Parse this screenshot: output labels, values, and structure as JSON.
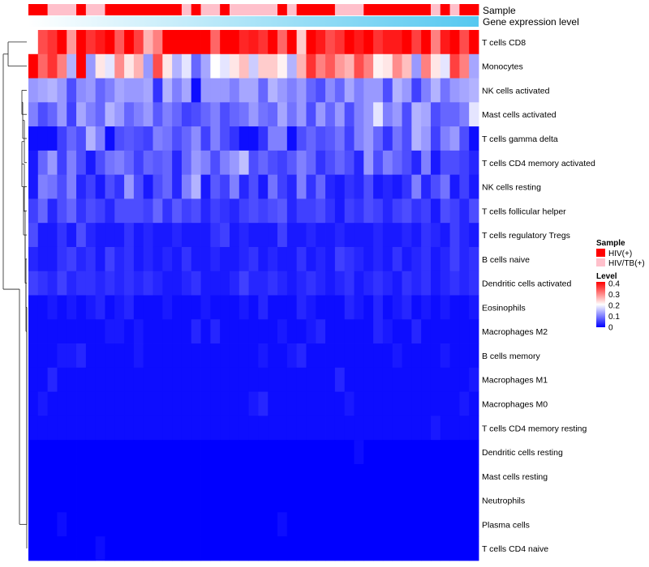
{
  "chart_data": {
    "type": "heatmap",
    "title": "",
    "annotations": {
      "sample_label": "Sample",
      "expression_label": "Gene expression level"
    },
    "rows": [
      "T cells CD8",
      "Monocytes",
      "NK cells activated",
      "Mast cells activated",
      "T cells gamma delta",
      "T cells CD4 memory activated",
      "NK cells resting",
      "T cells follicular helper",
      "T cells regulatory  Tregs",
      "B cells naive",
      "Dendritic cells activated",
      "Eosinophils",
      "Macrophages M2",
      "B cells memory",
      "Macrophages M1",
      "Macrophages M0",
      "T cells CD4 memory resting",
      "Dendritic cells resting",
      "Mast cells resting",
      "Neutrophils",
      "Plasma cells",
      "T cells CD4 naive"
    ],
    "n_columns": 47,
    "sample_groups": [
      "HIV(+)",
      "HIV(+)",
      "HIV/TB(+)",
      "HIV/TB(+)",
      "HIV/TB(+)",
      "HIV(+)",
      "HIV/TB(+)",
      "HIV/TB(+)",
      "HIV(+)",
      "HIV(+)",
      "HIV(+)",
      "HIV(+)",
      "HIV(+)",
      "HIV(+)",
      "HIV(+)",
      "HIV(+)",
      "HIV/TB(+)",
      "HIV(+)",
      "HIV/TB(+)",
      "HIV/TB(+)",
      "HIV(+)",
      "HIV/TB(+)",
      "HIV/TB(+)",
      "HIV/TB(+)",
      "HIV/TB(+)",
      "HIV/TB(+)",
      "HIV(+)",
      "HIV/TB(+)",
      "HIV(+)",
      "HIV(+)",
      "HIV(+)",
      "HIV(+)",
      "HIV/TB(+)",
      "HIV/TB(+)",
      "HIV/TB(+)",
      "HIV(+)",
      "HIV(+)",
      "HIV(+)",
      "HIV(+)",
      "HIV(+)",
      "HIV(+)",
      "HIV(+)",
      "HIV/TB(+)",
      "HIV(+)",
      "HIV/TB(+)",
      "HIV(+)",
      "HIV(+)"
    ],
    "values": [
      [
        0.2,
        0.34,
        0.36,
        0.4,
        0.28,
        0.42,
        0.36,
        0.38,
        0.42,
        0.33,
        0.42,
        0.35,
        0.26,
        0.3,
        0.42,
        0.44,
        0.44,
        0.4,
        0.44,
        0.32,
        0.42,
        0.4,
        0.37,
        0.38,
        0.36,
        0.41,
        0.32,
        0.4,
        0.24,
        0.42,
        0.38,
        0.34,
        0.36,
        0.42,
        0.38,
        0.4,
        0.36,
        0.38,
        0.38,
        0.42,
        0.35,
        0.42,
        0.3,
        0.38,
        0.42,
        0.34,
        0.42
      ],
      [
        0.4,
        0.32,
        0.36,
        0.3,
        0.14,
        0.42,
        0.12,
        0.22,
        0.18,
        0.29,
        0.22,
        0.26,
        0.12,
        0.34,
        0.22,
        0.14,
        0.18,
        0.08,
        0.13,
        0.2,
        0.18,
        0.22,
        0.25,
        0.16,
        0.24,
        0.24,
        0.21,
        0.14,
        0.26,
        0.36,
        0.3,
        0.33,
        0.28,
        0.26,
        0.34,
        0.3,
        0.21,
        0.22,
        0.29,
        0.25,
        0.12,
        0.3,
        0.22,
        0.18,
        0.35,
        0.3,
        0.13
      ],
      [
        0.12,
        0.13,
        0.14,
        0.12,
        0.06,
        0.11,
        0.12,
        0.08,
        0.1,
        0.13,
        0.12,
        0.12,
        0.13,
        0.04,
        0.14,
        0.1,
        0.13,
        0.01,
        0.12,
        0.12,
        0.12,
        0.1,
        0.13,
        0.13,
        0.08,
        0.14,
        0.12,
        0.1,
        0.12,
        0.08,
        0.06,
        0.11,
        0.08,
        0.13,
        0.1,
        0.12,
        0.12,
        0.06,
        0.14,
        0.12,
        0.05,
        0.1,
        0.14,
        0.09,
        0.12,
        0.13,
        0.14
      ],
      [
        0.1,
        0.06,
        0.08,
        0.12,
        0.05,
        0.13,
        0.1,
        0.08,
        0.14,
        0.12,
        0.08,
        0.1,
        0.12,
        0.07,
        0.1,
        0.08,
        0.05,
        0.06,
        0.08,
        0.1,
        0.06,
        0.08,
        0.09,
        0.12,
        0.09,
        0.08,
        0.13,
        0.09,
        0.12,
        0.06,
        0.12,
        0.08,
        0.12,
        0.06,
        0.1,
        0.12,
        0.18,
        0.1,
        0.12,
        0.06,
        0.14,
        0.13,
        0.06,
        0.08,
        0.08,
        0.1,
        0.18
      ],
      [
        0.01,
        0.01,
        0.01,
        0.05,
        0.08,
        0.06,
        0.14,
        0.1,
        0.01,
        0.06,
        0.07,
        0.06,
        0.05,
        0.1,
        0.09,
        0.06,
        0.08,
        0.11,
        0.05,
        0.1,
        0.06,
        0.04,
        0.01,
        0.01,
        0.04,
        0.1,
        0.1,
        0.01,
        0.06,
        0.08,
        0.06,
        0.07,
        0.09,
        0.05,
        0.1,
        0.12,
        0.08,
        0.04,
        0.09,
        0.06,
        0.14,
        0.12,
        0.05,
        0.1,
        0.12,
        0.06,
        0.01
      ],
      [
        0.02,
        0.08,
        0.12,
        0.05,
        0.1,
        0.06,
        0.02,
        0.06,
        0.09,
        0.1,
        0.08,
        0.05,
        0.08,
        0.07,
        0.08,
        0.03,
        0.08,
        0.12,
        0.1,
        0.06,
        0.1,
        0.12,
        0.15,
        0.06,
        0.08,
        0.06,
        0.05,
        0.07,
        0.1,
        0.08,
        0.04,
        0.06,
        0.08,
        0.06,
        0.03,
        0.12,
        0.06,
        0.1,
        0.08,
        0.06,
        0.03,
        0.1,
        0.02,
        0.06,
        0.06,
        0.05,
        0.03
      ],
      [
        0.02,
        0.1,
        0.09,
        0.06,
        0.1,
        0.03,
        0.05,
        0.02,
        0.06,
        0.04,
        0.12,
        0.06,
        0.02,
        0.06,
        0.08,
        0.03,
        0.1,
        0.14,
        0.02,
        0.07,
        0.05,
        0.1,
        0.03,
        0.06,
        0.02,
        0.09,
        0.05,
        0.03,
        0.1,
        0.04,
        0.08,
        0.03,
        0.02,
        0.04,
        0.03,
        0.06,
        0.02,
        0.03,
        0.02,
        0.04,
        0.1,
        0.03,
        0.06,
        0.09,
        0.02,
        0.05,
        0.02
      ],
      [
        0.05,
        0.08,
        0.03,
        0.06,
        0.08,
        0.04,
        0.06,
        0.05,
        0.03,
        0.06,
        0.06,
        0.06,
        0.05,
        0.08,
        0.04,
        0.07,
        0.05,
        0.06,
        0.03,
        0.05,
        0.04,
        0.03,
        0.05,
        0.06,
        0.05,
        0.06,
        0.07,
        0.03,
        0.05,
        0.05,
        0.06,
        0.04,
        0.02,
        0.05,
        0.04,
        0.06,
        0.05,
        0.03,
        0.05,
        0.06,
        0.04,
        0.05,
        0.02,
        0.06,
        0.05,
        0.03,
        0.06
      ],
      [
        0.06,
        0.02,
        0.02,
        0.04,
        0.02,
        0.06,
        0.03,
        0.02,
        0.02,
        0.02,
        0.04,
        0.02,
        0.03,
        0.02,
        0.02,
        0.03,
        0.02,
        0.02,
        0.02,
        0.04,
        0.05,
        0.02,
        0.03,
        0.02,
        0.02,
        0.02,
        0.05,
        0.02,
        0.02,
        0.03,
        0.02,
        0.02,
        0.03,
        0.02,
        0.02,
        0.02,
        0.03,
        0.02,
        0.02,
        0.03,
        0.02,
        0.04,
        0.03,
        0.02,
        0.05,
        0.03,
        0.02
      ],
      [
        0.03,
        0.02,
        0.02,
        0.04,
        0.05,
        0.03,
        0.04,
        0.02,
        0.05,
        0.03,
        0.04,
        0.02,
        0.03,
        0.02,
        0.03,
        0.02,
        0.04,
        0.02,
        0.02,
        0.03,
        0.02,
        0.02,
        0.03,
        0.04,
        0.02,
        0.03,
        0.02,
        0.02,
        0.04,
        0.02,
        0.03,
        0.02,
        0.05,
        0.04,
        0.03,
        0.02,
        0.03,
        0.02,
        0.04,
        0.02,
        0.03,
        0.04,
        0.02,
        0.03,
        0.05,
        0.03,
        0.04
      ],
      [
        0.05,
        0.04,
        0.03,
        0.05,
        0.03,
        0.04,
        0.04,
        0.03,
        0.04,
        0.03,
        0.04,
        0.03,
        0.04,
        0.03,
        0.02,
        0.02,
        0.03,
        0.04,
        0.02,
        0.02,
        0.02,
        0.03,
        0.05,
        0.03,
        0.03,
        0.04,
        0.03,
        0.02,
        0.03,
        0.04,
        0.03,
        0.02,
        0.03,
        0.04,
        0.02,
        0.03,
        0.04,
        0.03,
        0.02,
        0.04,
        0.03,
        0.04,
        0.02,
        0.03,
        0.04,
        0.03,
        0.04
      ],
      [
        0.01,
        0.01,
        0.02,
        0.01,
        0.02,
        0.01,
        0.02,
        0.03,
        0.01,
        0.02,
        0.03,
        0.01,
        0.01,
        0.01,
        0.02,
        0.01,
        0.01,
        0.01,
        0.02,
        0.01,
        0.01,
        0.01,
        0.02,
        0.01,
        0.03,
        0.01,
        0.01,
        0.01,
        0.03,
        0.02,
        0.01,
        0.01,
        0.01,
        0.03,
        0.02,
        0.01,
        0.03,
        0.01,
        0.02,
        0.03,
        0.01,
        0.02,
        0.01,
        0.02,
        0.01,
        0.01,
        0.02
      ],
      [
        0.01,
        0.01,
        0.01,
        0.01,
        0.01,
        0.01,
        0.01,
        0.01,
        0.02,
        0.02,
        0.01,
        0.02,
        0.01,
        0.01,
        0.01,
        0.01,
        0.01,
        0.03,
        0.01,
        0.03,
        0.01,
        0.01,
        0.01,
        0.01,
        0.01,
        0.01,
        0.02,
        0.01,
        0.01,
        0.02,
        0.03,
        0.01,
        0.01,
        0.01,
        0.01,
        0.01,
        0.03,
        0.02,
        0.01,
        0.01,
        0.03,
        0.01,
        0.01,
        0.01,
        0.01,
        0.01,
        0.01
      ],
      [
        0.01,
        0.01,
        0.01,
        0.02,
        0.02,
        0.03,
        0.01,
        0.01,
        0.01,
        0.01,
        0.01,
        0.02,
        0.01,
        0.01,
        0.01,
        0.01,
        0.01,
        0.01,
        0.01,
        0.01,
        0.01,
        0.01,
        0.01,
        0.01,
        0.02,
        0.01,
        0.01,
        0.02,
        0.03,
        0.01,
        0.01,
        0.01,
        0.01,
        0.01,
        0.01,
        0.01,
        0.01,
        0.01,
        0.02,
        0.01,
        0.01,
        0.01,
        0.01,
        0.02,
        0.01,
        0.01,
        0.01
      ],
      [
        0.01,
        0.01,
        0.03,
        0.01,
        0.01,
        0.01,
        0.01,
        0.01,
        0.01,
        0.01,
        0.01,
        0.01,
        0.01,
        0.01,
        0.01,
        0.01,
        0.01,
        0.01,
        0.01,
        0.01,
        0.01,
        0.01,
        0.01,
        0.01,
        0.01,
        0.01,
        0.01,
        0.01,
        0.01,
        0.01,
        0.01,
        0.01,
        0.03,
        0.01,
        0.01,
        0.01,
        0.01,
        0.01,
        0.01,
        0.01,
        0.01,
        0.01,
        0.01,
        0.01,
        0.01,
        0.01,
        0.02
      ],
      [
        0.01,
        0.02,
        0.01,
        0.01,
        0.01,
        0.01,
        0.01,
        0.01,
        0.01,
        0.01,
        0.01,
        0.01,
        0.01,
        0.01,
        0.01,
        0.01,
        0.01,
        0.01,
        0.01,
        0.01,
        0.01,
        0.01,
        0.01,
        0.02,
        0.03,
        0.01,
        0.01,
        0.01,
        0.01,
        0.01,
        0.01,
        0.01,
        0.01,
        0.02,
        0.01,
        0.01,
        0.01,
        0.01,
        0.01,
        0.01,
        0.01,
        0.01,
        0.01,
        0.01,
        0.01,
        0.02,
        0.01
      ],
      [
        0.01,
        0.01,
        0.01,
        0.01,
        0.01,
        0.01,
        0.01,
        0.01,
        0.01,
        0.01,
        0.01,
        0.01,
        0.01,
        0.01,
        0.01,
        0.01,
        0.01,
        0.01,
        0.01,
        0.01,
        0.01,
        0.01,
        0.01,
        0.01,
        0.01,
        0.01,
        0.01,
        0.01,
        0.01,
        0.01,
        0.01,
        0.01,
        0.01,
        0.01,
        0.01,
        0.01,
        0.01,
        0.01,
        0.01,
        0.01,
        0.01,
        0.01,
        0.02,
        0.01,
        0.01,
        0.01,
        0.01
      ],
      [
        0.0,
        0.0,
        0.0,
        0.0,
        0.0,
        0.0,
        0.0,
        0.0,
        0.0,
        0.0,
        0.0,
        0.0,
        0.0,
        0.0,
        0.0,
        0.0,
        0.0,
        0.0,
        0.0,
        0.0,
        0.0,
        0.0,
        0.0,
        0.0,
        0.0,
        0.0,
        0.0,
        0.0,
        0.0,
        0.0,
        0.0,
        0.0,
        0.0,
        0.0,
        0.01,
        0.0,
        0.0,
        0.0,
        0.0,
        0.0,
        0.0,
        0.0,
        0.0,
        0.0,
        0.0,
        0.0,
        0.0
      ],
      [
        0.0,
        0.0,
        0.0,
        0.0,
        0.0,
        0.0,
        0.0,
        0.0,
        0.0,
        0.0,
        0.0,
        0.0,
        0.0,
        0.0,
        0.0,
        0.0,
        0.0,
        0.0,
        0.0,
        0.0,
        0.0,
        0.0,
        0.0,
        0.0,
        0.0,
        0.0,
        0.0,
        0.0,
        0.0,
        0.0,
        0.0,
        0.0,
        0.0,
        0.0,
        0.0,
        0.0,
        0.0,
        0.0,
        0.0,
        0.0,
        0.0,
        0.0,
        0.0,
        0.0,
        0.0,
        0.0,
        0.0
      ],
      [
        0.0,
        0.0,
        0.0,
        0.0,
        0.0,
        0.0,
        0.0,
        0.0,
        0.0,
        0.0,
        0.0,
        0.0,
        0.0,
        0.0,
        0.0,
        0.0,
        0.0,
        0.0,
        0.0,
        0.0,
        0.0,
        0.0,
        0.0,
        0.0,
        0.0,
        0.0,
        0.0,
        0.0,
        0.0,
        0.0,
        0.0,
        0.0,
        0.0,
        0.0,
        0.0,
        0.0,
        0.0,
        0.0,
        0.0,
        0.0,
        0.0,
        0.0,
        0.0,
        0.0,
        0.0,
        0.0,
        0.0
      ],
      [
        0.0,
        0.0,
        0.0,
        0.01,
        0.0,
        0.0,
        0.0,
        0.0,
        0.0,
        0.0,
        0.0,
        0.0,
        0.0,
        0.0,
        0.0,
        0.0,
        0.0,
        0.0,
        0.0,
        0.0,
        0.0,
        0.0,
        0.0,
        0.0,
        0.0,
        0.0,
        0.01,
        0.0,
        0.0,
        0.0,
        0.0,
        0.0,
        0.0,
        0.0,
        0.0,
        0.0,
        0.0,
        0.0,
        0.0,
        0.0,
        0.0,
        0.0,
        0.0,
        0.0,
        0.0,
        0.0,
        0.0
      ],
      [
        0.0,
        0.0,
        0.0,
        0.0,
        0.0,
        0.0,
        0.0,
        0.01,
        0.0,
        0.0,
        0.0,
        0.0,
        0.0,
        0.0,
        0.0,
        0.0,
        0.0,
        0.0,
        0.0,
        0.0,
        0.0,
        0.0,
        0.0,
        0.0,
        0.0,
        0.0,
        0.0,
        0.0,
        0.0,
        0.0,
        0.0,
        0.0,
        0.0,
        0.0,
        0.0,
        0.0,
        0.0,
        0.0,
        0.0,
        0.0,
        0.0,
        0.0,
        0.0,
        0.0,
        0.0,
        0.0,
        0.0
      ]
    ],
    "color_scale": {
      "min": 0,
      "max": 0.4,
      "low_color": "#0000ff",
      "mid_color": "#ffffff",
      "high_color": "#ff0000",
      "mid_value": 0.2
    },
    "legend": {
      "sample_title": "Sample",
      "sample_entries": [
        {
          "label": "HIV(+)",
          "color": "#ff0000"
        },
        {
          "label": "HIV/TB(+)",
          "color": "#ffc0cb"
        }
      ],
      "level_title": "Level",
      "level_ticks": [
        "0.4",
        "0.3",
        "0.2",
        "0.1",
        "0"
      ],
      "level_tick_values": [
        0.4,
        0.3,
        0.2,
        0.1,
        0
      ]
    },
    "expression_bar": {
      "start_color": "#ffffff",
      "end_color": "#55c8f0"
    },
    "legend_placement": "right"
  }
}
